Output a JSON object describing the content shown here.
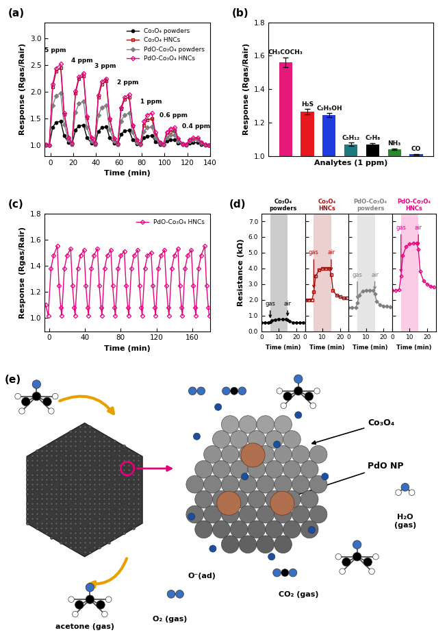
{
  "chart_data": [
    {
      "type": "line",
      "title": "(a)",
      "x_label": "Time (min)",
      "y_label": "Response (Rgas/Rair)",
      "x": [
        -4,
        -1,
        2,
        5,
        9,
        12,
        16,
        19,
        22,
        25,
        29,
        32,
        36,
        39,
        42,
        45,
        49,
        52,
        56,
        59,
        62,
        65,
        69,
        72,
        76,
        79,
        82,
        85,
        89,
        92,
        96,
        99,
        102,
        105,
        109,
        112,
        116,
        119,
        122,
        125,
        129,
        132,
        136,
        139
      ],
      "series": [
        {
          "name": "Co₃O₄ powders",
          "color": "#000000",
          "marker": "filled circle",
          "values": [
            1.0,
            1.0,
            1.34,
            1.43,
            1.45,
            1.18,
            1.05,
            1.02,
            1.29,
            1.36,
            1.38,
            1.15,
            1.04,
            1.02,
            1.26,
            1.33,
            1.35,
            1.14,
            1.04,
            1.02,
            1.21,
            1.27,
            1.28,
            1.11,
            1.03,
            1.01,
            1.14,
            1.17,
            1.18,
            1.07,
            1.02,
            1.01,
            1.08,
            1.1,
            1.1,
            1.04,
            1.01,
            1.0,
            1.04,
            1.05,
            1.05,
            1.02,
            1.0,
            1.0
          ]
        },
        {
          "name": "Co₃O₄ HNCs",
          "color": "#a01010",
          "marker": "open square",
          "values": [
            1.02,
            1.0,
            2.09,
            2.38,
            2.45,
            1.58,
            1.15,
            1.04,
            1.98,
            2.24,
            2.3,
            1.52,
            1.13,
            1.04,
            1.9,
            2.14,
            2.2,
            1.48,
            1.12,
            1.03,
            1.68,
            1.86,
            1.9,
            1.36,
            1.09,
            1.03,
            1.38,
            1.48,
            1.5,
            1.2,
            1.05,
            1.02,
            1.2,
            1.26,
            1.27,
            1.11,
            1.03,
            1.01,
            1.09,
            1.11,
            1.12,
            1.05,
            1.02,
            1.0
          ]
        },
        {
          "name": "PdO-Co₃O₄ powders",
          "color": "#808080",
          "marker": "filled diamond",
          "values": [
            1.0,
            1.0,
            1.74,
            1.93,
            1.98,
            1.39,
            1.1,
            1.03,
            1.62,
            1.78,
            1.82,
            1.33,
            1.08,
            1.03,
            1.56,
            1.71,
            1.75,
            1.3,
            1.08,
            1.03,
            1.45,
            1.57,
            1.6,
            1.24,
            1.06,
            1.02,
            1.26,
            1.33,
            1.35,
            1.14,
            1.04,
            1.02,
            1.15,
            1.19,
            1.2,
            1.08,
            1.02,
            1.01,
            1.08,
            1.1,
            1.1,
            1.04,
            1.01,
            1.0
          ]
        },
        {
          "name": "PdO-Co₃O₄ HNCs",
          "color": "#e6007e",
          "marker": "open diamond",
          "values": [
            1.02,
            1.0,
            2.14,
            2.44,
            2.52,
            1.61,
            1.15,
            1.04,
            2.01,
            2.28,
            2.35,
            1.54,
            1.14,
            1.04,
            1.94,
            2.19,
            2.25,
            1.5,
            1.13,
            1.03,
            1.71,
            1.9,
            1.95,
            1.38,
            1.1,
            1.03,
            1.45,
            1.57,
            1.6,
            1.24,
            1.06,
            1.02,
            1.25,
            1.31,
            1.33,
            1.13,
            1.03,
            1.01,
            1.11,
            1.14,
            1.15,
            1.06,
            1.02,
            1.0
          ]
        }
      ],
      "annotations": [
        {
          "text": "5 ppm",
          "x": 4,
          "y": 2.72
        },
        {
          "text": "4 ppm",
          "x": 28,
          "y": 2.52
        },
        {
          "text": "3 ppm",
          "x": 48,
          "y": 2.42
        },
        {
          "text": "2 ppm",
          "x": 68,
          "y": 2.12
        },
        {
          "text": "1 ppm",
          "x": 88,
          "y": 1.76
        },
        {
          "text": "0.6 ppm",
          "x": 108,
          "y": 1.5
        },
        {
          "text": "0.4 ppm",
          "x": 128,
          "y": 1.3
        }
      ],
      "xlim": [
        -5,
        140
      ],
      "xticks": [
        0,
        20,
        40,
        60,
        80,
        100,
        120,
        140
      ],
      "ylim": [
        0.8,
        3.3
      ],
      "yticks": [
        1.0,
        1.5,
        2.0,
        2.5,
        3.0
      ],
      "legend": "upper right"
    },
    {
      "type": "bar",
      "title": "(b)",
      "x_label": "Analytes (1 ppm)",
      "y_label": "Response (Rgas/Rair)",
      "categories": [
        "CH₃COCH₃",
        "H₂S",
        "C₂H₅OH",
        "C₅H₁₂",
        "C₇H₈",
        "NH₃",
        "CO"
      ],
      "values": [
        1.56,
        1.265,
        1.245,
        1.07,
        1.07,
        1.04,
        1.01
      ],
      "errors": [
        0.03,
        0.015,
        0.012,
        0.01,
        0.008,
        0.005,
        0.003
      ],
      "colors": [
        "#e6197a",
        "#e8191e",
        "#1f3ce0",
        "#1a7a80",
        "#000000",
        "#2a8a2a",
        "#1f3ce0"
      ],
      "ylim": [
        1.0,
        1.8
      ],
      "yticks": [
        1.0,
        1.2,
        1.4,
        1.6,
        1.8
      ],
      "tick_labels": "y"
    },
    {
      "type": "line",
      "title": "(c)",
      "x_label": "Time (min)",
      "y_label": "Response (Rgas/Rair)",
      "x": [
        -4,
        -1,
        2,
        5,
        9,
        11,
        13,
        14,
        17,
        20,
        24,
        26,
        28,
        29,
        32,
        35,
        39,
        41,
        43,
        44,
        47,
        50,
        54,
        56,
        58,
        59,
        62,
        65,
        69,
        71,
        73,
        74,
        77,
        80,
        84,
        86,
        88,
        89,
        92,
        95,
        99,
        101,
        103,
        104,
        107,
        110,
        114,
        116,
        118,
        119,
        122,
        125,
        129,
        131,
        133,
        134,
        137,
        140,
        144,
        146,
        148,
        149,
        152,
        155,
        159,
        161,
        163,
        164,
        167,
        170,
        174,
        176,
        178,
        179
      ],
      "series": [
        {
          "name": "PdO-Co₃O₄ HNCs",
          "color": "#e6007e",
          "marker": "open diamond",
          "values": [
            1.1,
            1.02,
            1.38,
            1.48,
            1.55,
            1.25,
            1.08,
            1.02,
            1.38,
            1.48,
            1.53,
            1.25,
            1.08,
            1.02,
            1.38,
            1.48,
            1.52,
            1.25,
            1.08,
            1.02,
            1.38,
            1.48,
            1.53,
            1.25,
            1.08,
            1.02,
            1.38,
            1.48,
            1.52,
            1.25,
            1.08,
            1.02,
            1.38,
            1.48,
            1.51,
            1.25,
            1.08,
            1.02,
            1.38,
            1.48,
            1.52,
            1.25,
            1.08,
            1.02,
            1.38,
            1.48,
            1.5,
            1.25,
            1.08,
            1.02,
            1.38,
            1.48,
            1.52,
            1.25,
            1.08,
            1.02,
            1.38,
            1.48,
            1.53,
            1.25,
            1.08,
            1.02,
            1.38,
            1.48,
            1.52,
            1.25,
            1.08,
            1.02,
            1.38,
            1.48,
            1.55,
            1.25,
            1.08,
            1.02
          ]
        }
      ],
      "xlim": [
        -5,
        180
      ],
      "xticks": [
        0,
        40,
        80,
        120,
        160
      ],
      "ylim": [
        0.9,
        1.8
      ],
      "yticks": [
        1.0,
        1.2,
        1.4,
        1.6,
        1.8
      ],
      "legend": "upper right"
    },
    {
      "type": "line",
      "title": "(d)",
      "x_label": "Time (min)",
      "y_label": "Resistance (kΩ)",
      "x": [
        0,
        2,
        4,
        5,
        6,
        8,
        10,
        12,
        14,
        15,
        16,
        18,
        20,
        22,
        24
      ],
      "series": [
        {
          "name": "Co₃O₄\npowders",
          "color": "#000000",
          "marker": "filled circle",
          "values": [
            0.55,
            0.55,
            0.55,
            0.6,
            0.7,
            0.74,
            0.75,
            0.75,
            0.75,
            0.72,
            0.62,
            0.57,
            0.56,
            0.55,
            0.55
          ]
        },
        {
          "name": "Co₃O₄\nHNCs",
          "color": "#a01010",
          "marker": "open square",
          "values": [
            2.0,
            2.0,
            2.0,
            2.5,
            3.5,
            3.9,
            4.0,
            4.0,
            4.0,
            3.6,
            2.6,
            2.3,
            2.2,
            2.1,
            2.1
          ]
        },
        {
          "name": "PdO-Co₃O₄\npowders",
          "color": "#808080",
          "marker": "filled diamond",
          "values": [
            1.5,
            1.5,
            1.5,
            1.8,
            2.3,
            2.55,
            2.6,
            2.6,
            2.6,
            2.4,
            1.9,
            1.7,
            1.6,
            1.6,
            1.55
          ]
        },
        {
          "name": "PdO-Co₃O₄\nHNCs",
          "color": "#e6007e",
          "marker": "open diamond",
          "values": [
            2.6,
            2.6,
            2.65,
            3.5,
            4.8,
            5.4,
            5.55,
            5.6,
            5.6,
            5.2,
            3.8,
            3.2,
            3.0,
            2.85,
            2.8
          ]
        }
      ],
      "annotations": [
        {
          "text": "gas",
          "x": 5
        },
        {
          "text": "air",
          "x": 15
        }
      ],
      "xlim": [
        0,
        25
      ],
      "xticks": [
        0,
        10,
        20
      ],
      "ylim": [
        0,
        7.5
      ],
      "yticks": [
        0.0,
        1.0,
        2.0,
        3.0,
        4.0,
        5.0,
        6.0,
        7.0
      ]
    }
  ],
  "diagram": {
    "panel": "(e)",
    "labels": {
      "co3o4": "Co₃O₄",
      "pdo": "PdO NP",
      "h2o": "H₂O\n(gas)",
      "oad": "O⁻(ad)",
      "co2": "CO₂ (gas)",
      "o2": "O₂ (gas)",
      "acetone": "acetone (gas)"
    }
  }
}
